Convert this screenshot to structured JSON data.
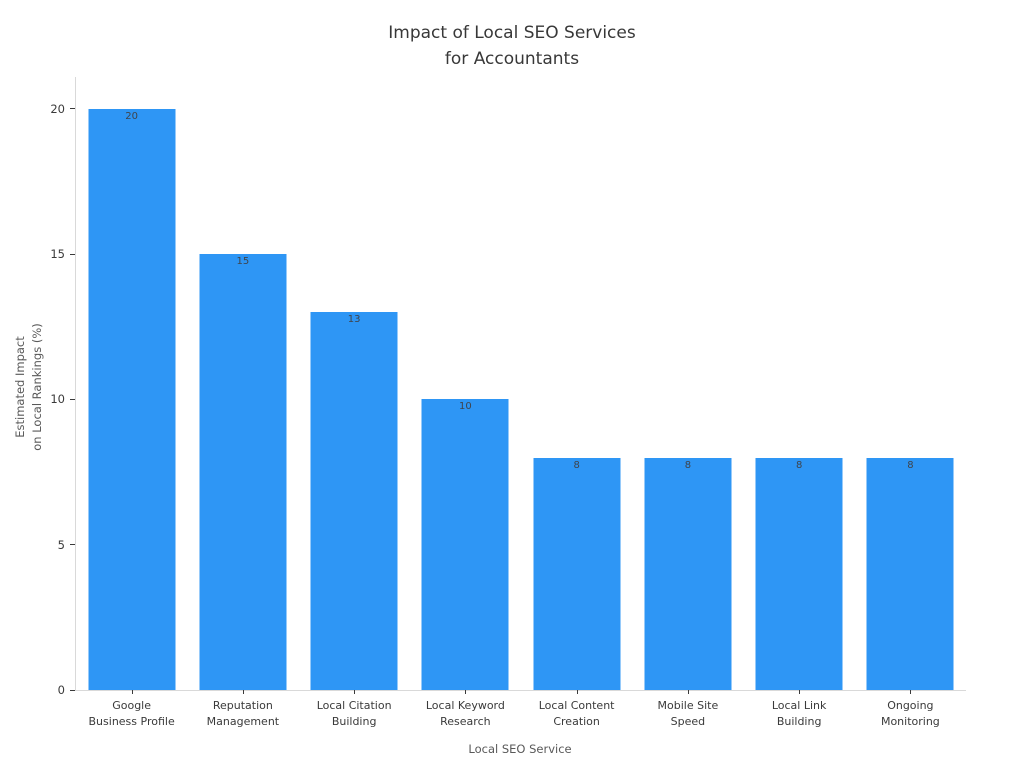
{
  "chart_data": {
    "type": "bar",
    "title": "Impact of Local SEO Services\nfor Accountants",
    "xlabel": "Local SEO Service",
    "ylabel": "Estimated Impact\non Local Rankings (%)",
    "categories": [
      "Google\nBusiness Profile",
      "Reputation\nManagement",
      "Local Citation\nBuilding",
      "Local Keyword\nResearch",
      "Local Content\nCreation",
      "Mobile Site\nSpeed",
      "Local Link\nBuilding",
      "Ongoing\nMonitoring"
    ],
    "values": [
      20,
      15,
      13,
      10,
      8,
      8,
      8,
      8
    ],
    "value_labels": [
      "20",
      "15",
      "13",
      "10",
      "8",
      "8",
      "8",
      "8"
    ],
    "yticks": [
      0,
      5,
      10,
      15,
      20
    ],
    "ylim": [
      0,
      21.1
    ],
    "grid": false,
    "legend": "none",
    "bar_color": "#2e96f5",
    "axis_line_color": "#d9d9d9",
    "tick_color": "#3a3a3a",
    "text_color": "#3a3a3a",
    "axis_title_color": "#595959",
    "bar_label_color": "#3f444c",
    "background_color": "#ffffff"
  }
}
